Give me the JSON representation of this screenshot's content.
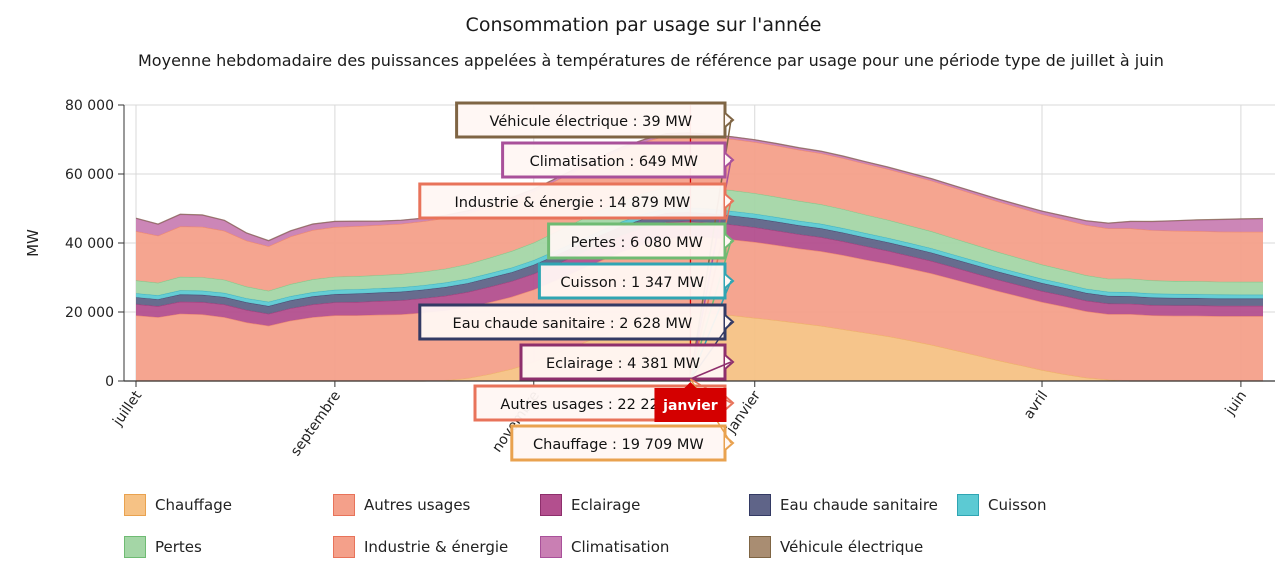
{
  "chart_data": {
    "type": "area",
    "stacked": true,
    "title": "Consommation par usage sur l'année",
    "subtitle": "Moyenne hebdomadaire des puissances appelées à températures de référence par usage pour une période type de juillet à juin",
    "ylabel": "MW",
    "xlabel": "",
    "ylim": [
      0,
      80000
    ],
    "yticks": [
      "0",
      "20 000",
      "40 000",
      "60 000",
      "80 000"
    ],
    "xticks": [
      "juillet",
      "septembre",
      "novembre",
      "janvier",
      "avril",
      "juin"
    ],
    "grid": true,
    "legend_position": "bottom",
    "x_weeks": [
      1,
      2,
      3,
      4,
      5,
      6,
      7,
      8,
      9,
      10,
      11,
      12,
      13,
      14,
      15,
      16,
      17,
      18,
      19,
      20,
      21,
      22,
      23,
      24,
      25,
      26,
      27,
      28,
      29,
      30,
      31,
      32,
      33,
      34,
      35,
      36,
      37,
      38,
      39,
      40,
      41,
      42,
      43,
      44,
      45,
      46,
      47,
      48,
      49,
      50,
      51,
      52
    ],
    "series": [
      {
        "name": "Chauffage",
        "color": "#f6c285",
        "border": "#e9a24f",
        "values": [
          0,
          0,
          0,
          0,
          0,
          0,
          0,
          0,
          0,
          0,
          0,
          0,
          0,
          0,
          200,
          800,
          2000,
          3500,
          5500,
          8000,
          10500,
          13000,
          15500,
          17500,
          19000,
          19709,
          19500,
          19000,
          18300,
          17600,
          16800,
          16000,
          15000,
          14000,
          13000,
          11800,
          10500,
          9000,
          7500,
          6000,
          4600,
          3200,
          2000,
          1000,
          400,
          0,
          0,
          0,
          0,
          0,
          0,
          0
        ]
      },
      {
        "name": "Autres usages",
        "color": "#f4a08a",
        "border": "#e8735a",
        "values": [
          19000,
          18500,
          19500,
          19300,
          18500,
          17000,
          16000,
          17500,
          18500,
          19000,
          19000,
          19200,
          19300,
          19800,
          20200,
          20600,
          20800,
          20900,
          21000,
          21200,
          21500,
          21800,
          22000,
          22100,
          22200,
          22224,
          22100,
          22000,
          22000,
          21800,
          21600,
          21600,
          21500,
          21200,
          21000,
          20800,
          20700,
          20500,
          20300,
          20100,
          19900,
          19700,
          19600,
          19200,
          19000,
          19400,
          19000,
          18900,
          18900,
          18800,
          18800,
          18800
        ]
      },
      {
        "name": "Eclairage",
        "color": "#b34f8e",
        "border": "#8e2f6c",
        "values": [
          3300,
          3200,
          3500,
          3600,
          3700,
          3600,
          3500,
          3600,
          3700,
          3800,
          3900,
          4000,
          4100,
          4200,
          4300,
          4400,
          4500,
          4550,
          4600,
          4650,
          4700,
          4750,
          4800,
          4850,
          4900,
          4381,
          4350,
          4300,
          4250,
          4200,
          4150,
          4100,
          4000,
          3900,
          3800,
          3700,
          3600,
          3500,
          3400,
          3300,
          3250,
          3200,
          3150,
          3100,
          3050,
          3000,
          3000,
          3000,
          3000,
          3000,
          3000,
          3000
        ]
      },
      {
        "name": "Eau chaude sanitaire",
        "color": "#5f6488",
        "border": "#333a64",
        "values": [
          2000,
          2000,
          2100,
          2100,
          2150,
          2200,
          2250,
          2300,
          2350,
          2400,
          2450,
          2450,
          2500,
          2500,
          2550,
          2550,
          2600,
          2600,
          2600,
          2620,
          2620,
          2620,
          2628,
          2628,
          2628,
          2628,
          2620,
          2610,
          2600,
          2590,
          2570,
          2550,
          2520,
          2500,
          2470,
          2450,
          2420,
          2400,
          2380,
          2350,
          2320,
          2300,
          2280,
          2250,
          2230,
          2200,
          2200,
          2180,
          2150,
          2120,
          2100,
          2100
        ]
      },
      {
        "name": "Cuisson",
        "color": "#5ccad3",
        "border": "#2fa5b3",
        "values": [
          1150,
          1150,
          1200,
          1200,
          1200,
          1200,
          1200,
          1220,
          1230,
          1240,
          1250,
          1260,
          1270,
          1280,
          1290,
          1300,
          1310,
          1320,
          1330,
          1335,
          1340,
          1345,
          1347,
          1347,
          1347,
          1347,
          1345,
          1340,
          1335,
          1330,
          1320,
          1310,
          1300,
          1290,
          1280,
          1270,
          1260,
          1250,
          1240,
          1230,
          1220,
          1210,
          1200,
          1190,
          1180,
          1170,
          1160,
          1160,
          1150,
          1150,
          1150,
          1150
        ]
      },
      {
        "name": "Pertes",
        "color": "#a4d6a6",
        "border": "#6fbb73",
        "values": [
          3700,
          3600,
          3900,
          3900,
          3800,
          3400,
          3200,
          3500,
          3700,
          3800,
          3800,
          3800,
          3850,
          3900,
          4000,
          4200,
          4500,
          4800,
          5100,
          5400,
          5700,
          5900,
          6000,
          6050,
          6080,
          6080,
          6050,
          6000,
          5950,
          5850,
          5750,
          5650,
          5500,
          5350,
          5200,
          5050,
          4900,
          4750,
          4600,
          4450,
          4300,
          4150,
          4000,
          3900,
          3800,
          3900,
          3800,
          3750,
          3750,
          3700,
          3700,
          3700
        ]
      },
      {
        "name": "Industrie & énergie",
        "color": "#f4a08a",
        "border": "#e8735a",
        "values": [
          14300,
          13700,
          14600,
          14600,
          14200,
          13300,
          12900,
          13800,
          14300,
          14400,
          14500,
          14500,
          14550,
          14600,
          14650,
          14700,
          14750,
          14800,
          14820,
          14840,
          14860,
          14870,
          14875,
          14879,
          14879,
          14879,
          14870,
          14860,
          14850,
          14830,
          14810,
          14790,
          14770,
          14750,
          14730,
          14710,
          14690,
          14670,
          14650,
          14630,
          14610,
          14600,
          14590,
          14580,
          14570,
          14560,
          14550,
          14540,
          14530,
          14520,
          14510,
          14500
        ]
      },
      {
        "name": "Climatisation",
        "color": "#c97fb3",
        "border": "#a9519a",
        "values": [
          3700,
          3300,
          3500,
          3400,
          3000,
          2200,
          1600,
          1600,
          1700,
          1600,
          1400,
          1100,
          1000,
          900,
          800,
          750,
          700,
          680,
          660,
          650,
          650,
          649,
          649,
          649,
          649,
          649,
          640,
          630,
          620,
          610,
          600,
          590,
          580,
          570,
          560,
          550,
          560,
          580,
          620,
          680,
          760,
          860,
          1000,
          1200,
          1500,
          2000,
          2500,
          2900,
          3200,
          3500,
          3700,
          3800
        ]
      },
      {
        "name": "Véhicule électrique",
        "color": "#a98d72",
        "border": "#7f6544",
        "values": [
          39,
          39,
          39,
          39,
          39,
          39,
          39,
          39,
          39,
          39,
          39,
          39,
          39,
          39,
          39,
          39,
          39,
          39,
          39,
          39,
          39,
          39,
          39,
          39,
          39,
          39,
          39,
          39,
          39,
          39,
          39,
          39,
          39,
          39,
          39,
          39,
          39,
          39,
          39,
          39,
          39,
          39,
          39,
          39,
          39,
          39,
          39,
          39,
          39,
          39,
          39,
          39
        ]
      }
    ],
    "tooltip": {
      "label": "janvier",
      "week_index": 26,
      "entries": [
        {
          "text": "Véhicule électrique : 39 MW",
          "series": "Véhicule électrique"
        },
        {
          "text": "Climatisation : 649 MW",
          "series": "Climatisation"
        },
        {
          "text": "Industrie & énergie : 14 879 MW",
          "series": "Industrie & énergie"
        },
        {
          "text": "Pertes : 6 080 MW",
          "series": "Pertes"
        },
        {
          "text": "Cuisson : 1 347 MW",
          "series": "Cuisson"
        },
        {
          "text": "Eau chaude sanitaire : 2 628 MW",
          "series": "Eau chaude sanitaire"
        },
        {
          "text": "Eclairage : 4 381 MW",
          "series": "Eclairage"
        },
        {
          "text": "Autres usages : 22 224 MW",
          "series": "Autres usages"
        },
        {
          "text": "Chauffage : 19 709 MW",
          "series": "Chauffage"
        }
      ]
    }
  }
}
